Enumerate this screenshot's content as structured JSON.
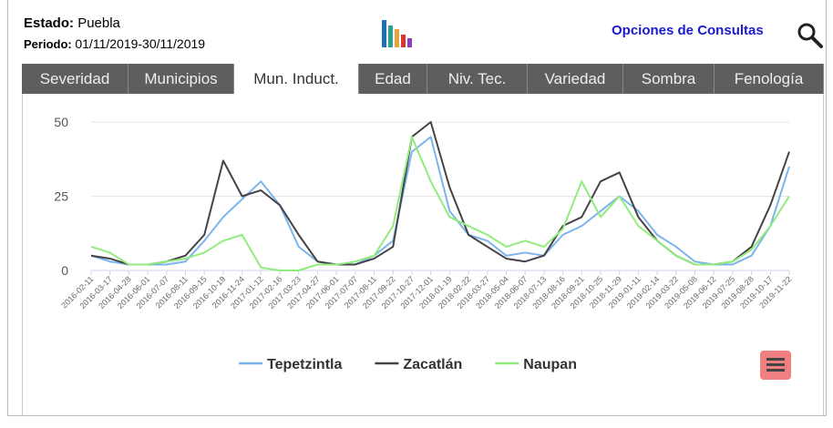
{
  "header": {
    "estado_label": "Estado:",
    "estado": "Puebla",
    "periodo_label": "Periodo:",
    "periodo": "01/11/2019-30/11/2019",
    "options": "Opciones de Consultas"
  },
  "tabs": [
    "Severidad",
    "Municipios",
    "Mun. Induct.",
    "Edad",
    "Niv. Tec.",
    "Variedad",
    "Sombra",
    "Fenología"
  ],
  "active_tab": 2,
  "chart_data": {
    "type": "line",
    "categories": [
      "2016-02-11",
      "2016-03-17",
      "2016-04-28",
      "2016-06-01",
      "2016-07-07",
      "2016-08-11",
      "2016-09-15",
      "2016-10-19",
      "2016-11-24",
      "2017-01-12",
      "2017-02-16",
      "2017-03-23",
      "2017-04-27",
      "2017-06-01",
      "2017-07-07",
      "2017-08-11",
      "2017-09-22",
      "2017-10-27",
      "2017-12-01",
      "2018-01-19",
      "2018-02-22",
      "2018-03-27",
      "2018-05-04",
      "2018-06-07",
      "2018-07-13",
      "2018-08-16",
      "2018-09-21",
      "2018-10-25",
      "2018-11-29",
      "2019-01-11",
      "2019-02-14",
      "2019-03-22",
      "2019-05-08",
      "2019-06-12",
      "2019-07-25",
      "2019-08-28",
      "2019-10-17",
      "2019-11-22"
    ],
    "series": [
      {
        "name": "Tepetzintla",
        "color": "#7cb5ec",
        "values": [
          5,
          3,
          2,
          2,
          2,
          3,
          10,
          18,
          24,
          30,
          22,
          8,
          3,
          2,
          2,
          5,
          10,
          40,
          45,
          20,
          12,
          10,
          5,
          6,
          5,
          12,
          15,
          20,
          25,
          20,
          12,
          8,
          3,
          2,
          2,
          5,
          15,
          35
        ]
      },
      {
        "name": "Zacatlán",
        "color": "#434348",
        "values": [
          5,
          4,
          2,
          2,
          3,
          5,
          12,
          37,
          25,
          27,
          22,
          12,
          3,
          2,
          2,
          4,
          8,
          45,
          50,
          28,
          12,
          8,
          4,
          3,
          5,
          15,
          18,
          30,
          33,
          18,
          10,
          5,
          2,
          2,
          3,
          8,
          22,
          40
        ]
      },
      {
        "name": "Naupan",
        "color": "#90ed7d",
        "values": [
          8,
          6,
          2,
          2,
          3,
          4,
          6,
          10,
          12,
          1,
          0,
          0,
          2,
          2,
          3,
          5,
          15,
          45,
          30,
          18,
          15,
          12,
          8,
          10,
          8,
          14,
          30,
          18,
          25,
          15,
          10,
          5,
          2,
          2,
          3,
          7,
          15,
          25
        ]
      }
    ],
    "ylim": [
      0,
      50
    ],
    "yticks": [
      0,
      25,
      50
    ],
    "grid": true
  }
}
